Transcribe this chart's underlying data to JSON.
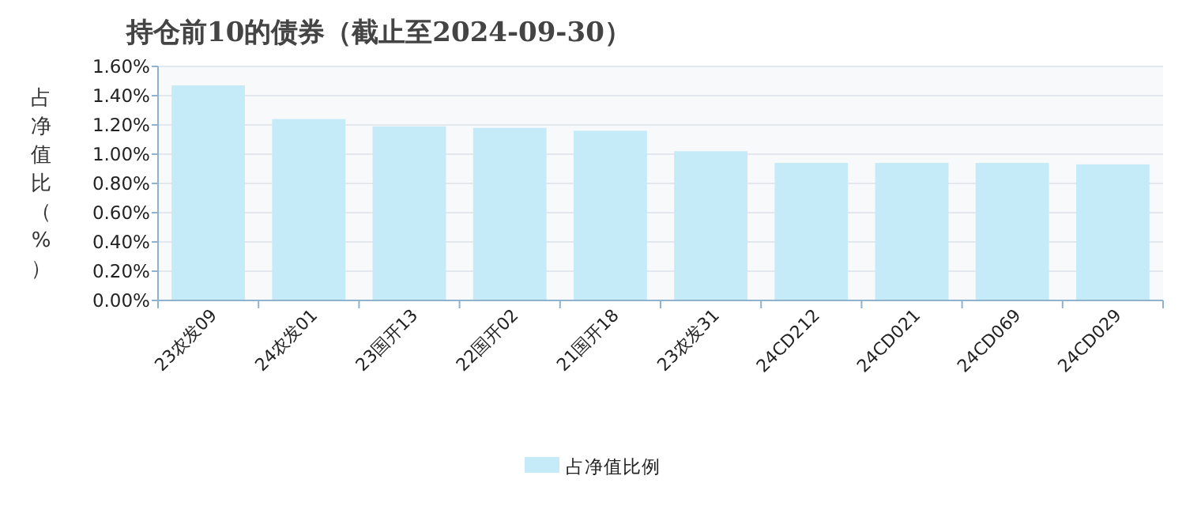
{
  "chart_data": {
    "type": "bar",
    "title": "持仓前10的债券（截止至2024-09-30）",
    "ylabel": "占净值比（%）",
    "categories": [
      "23农发09",
      "24农发01",
      "23国开13",
      "22国开02",
      "21国开18",
      "23农发31",
      "24CD212",
      "24CD021",
      "24CD069",
      "24CD029"
    ],
    "series": [
      {
        "name": "占净值比例",
        "color": "#c4ebf7",
        "values": [
          1.47,
          1.24,
          1.19,
          1.18,
          1.16,
          1.02,
          0.94,
          0.94,
          0.94,
          0.93
        ]
      }
    ],
    "ylim": [
      0,
      1.6
    ],
    "yticks": [
      {
        "value": 0,
        "label": "0.00%"
      },
      {
        "value": 0.2,
        "label": "0.20%"
      },
      {
        "value": 0.4,
        "label": "0.40%"
      },
      {
        "value": 0.6,
        "label": "0.60%"
      },
      {
        "value": 0.8,
        "label": "0.80%"
      },
      {
        "value": 1.0,
        "label": "1.00%"
      },
      {
        "value": 1.2,
        "label": "1.20%"
      },
      {
        "value": 1.4,
        "label": "1.40%"
      },
      {
        "value": 1.6,
        "label": "1.60%"
      }
    ],
    "grid": "y",
    "legend": "bottom"
  }
}
